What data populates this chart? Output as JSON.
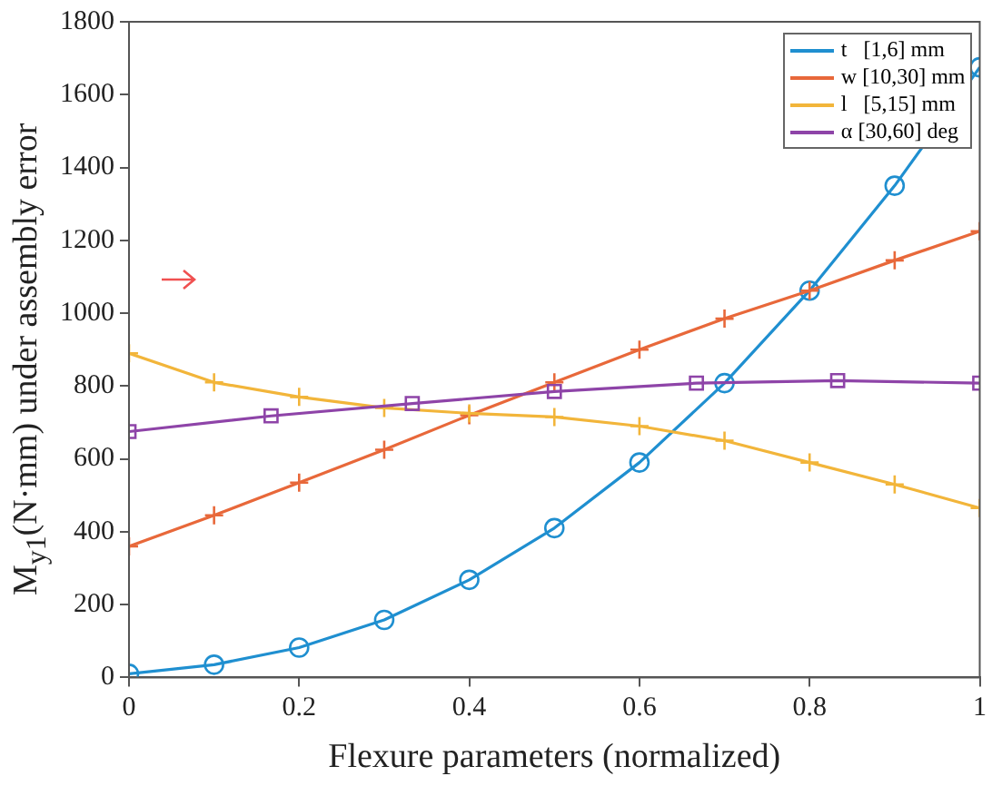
{
  "chart_data": {
    "type": "line",
    "xlabel": "Flexure parameters (normalized)",
    "ylabel": "M$_{y1}$(N·mm) under assembly error",
    "xlim": [
      0,
      1
    ],
    "xticks": [
      0,
      0.2,
      0.4,
      0.6,
      0.8,
      1
    ],
    "ylim": [
      0,
      1800
    ],
    "yticks": [
      0,
      200,
      400,
      600,
      800,
      1000,
      1200,
      1400,
      1600,
      1800
    ],
    "grid": false,
    "legend": "top right",
    "line_style": "solid",
    "series": [
      {
        "name": "t   [1,6] mm",
        "color": "#1f8fd0",
        "marker": "circle",
        "x": [
          0,
          0.1,
          0.2,
          0.3,
          0.4,
          0.5,
          0.6,
          0.7,
          0.8,
          0.9,
          1
        ],
        "values": [
          10,
          35,
          82,
          158,
          268,
          410,
          590,
          808,
          1062,
          1350,
          1675
        ]
      },
      {
        "name": "w [10,30] mm",
        "color": "#e8683a",
        "marker": "cross",
        "x": [
          0,
          0.1,
          0.2,
          0.3,
          0.4,
          0.5,
          0.6,
          0.7,
          0.8,
          0.9,
          1
        ],
        "values": [
          360,
          445,
          535,
          625,
          720,
          810,
          900,
          985,
          1062,
          1145,
          1225
        ]
      },
      {
        "name": "l   [5,15] mm",
        "color": "#f2b53a",
        "marker": "cross",
        "x": [
          0,
          0.1,
          0.2,
          0.3,
          0.4,
          0.5,
          0.6,
          0.7,
          0.8,
          0.9,
          1
        ],
        "values": [
          890,
          810,
          770,
          740,
          725,
          715,
          690,
          650,
          590,
          530,
          465
        ]
      },
      {
        "name": "α [30,60] deg",
        "color": "#8e44a8",
        "marker": "square",
        "x": [
          0,
          0.167,
          0.333,
          0.5,
          0.667,
          0.833,
          1
        ],
        "values": [
          675,
          718,
          752,
          785,
          808,
          815,
          808
        ]
      }
    ]
  }
}
